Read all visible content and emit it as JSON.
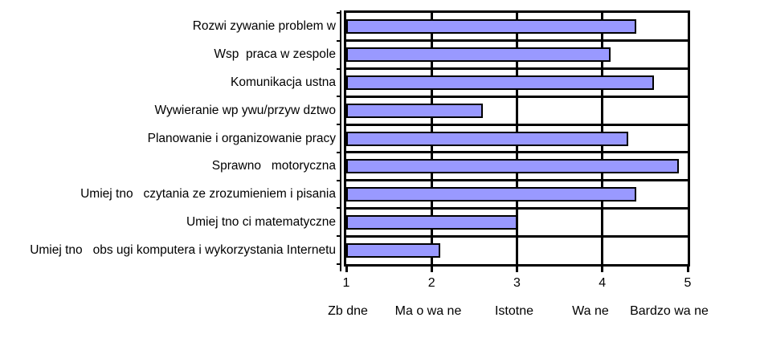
{
  "chart_data": {
    "type": "bar",
    "orientation": "horizontal",
    "title": "",
    "xlabel": "",
    "ylabel": "",
    "categories": [
      "Rozwi zywanie problem w",
      "Wsp  praca w zespole",
      "Komunikacja ustna",
      "Wywieranie wp ywu/przyw dztwo",
      "Planowanie i organizowanie pracy",
      "Sprawno   motoryczna",
      "Umiej tno   czytania ze zrozumieniem i pisania",
      "Umiej tno ci matematyczne",
      "Umiej tno   obs ugi komputera i wykorzystania Internetu"
    ],
    "values": [
      4.4,
      4.1,
      4.6,
      2.6,
      4.3,
      4.9,
      4.4,
      3.0,
      2.1
    ],
    "xlim": [
      1,
      5
    ],
    "xtick_labels": [
      "1",
      "2",
      "3",
      "4",
      "5"
    ],
    "scale_labels": [
      "Zb dne",
      "Ma o wa ne",
      "Istotne",
      "Wa ne",
      "Bardzo wa ne"
    ],
    "legend": "none",
    "grid": "vertical value gridlines and horizontal category separators",
    "colors": {
      "bar_fill": "#9999FF",
      "bar_border": "#000000",
      "axis": "#000000",
      "text": "#000000",
      "background": "#FFFFFF"
    }
  }
}
